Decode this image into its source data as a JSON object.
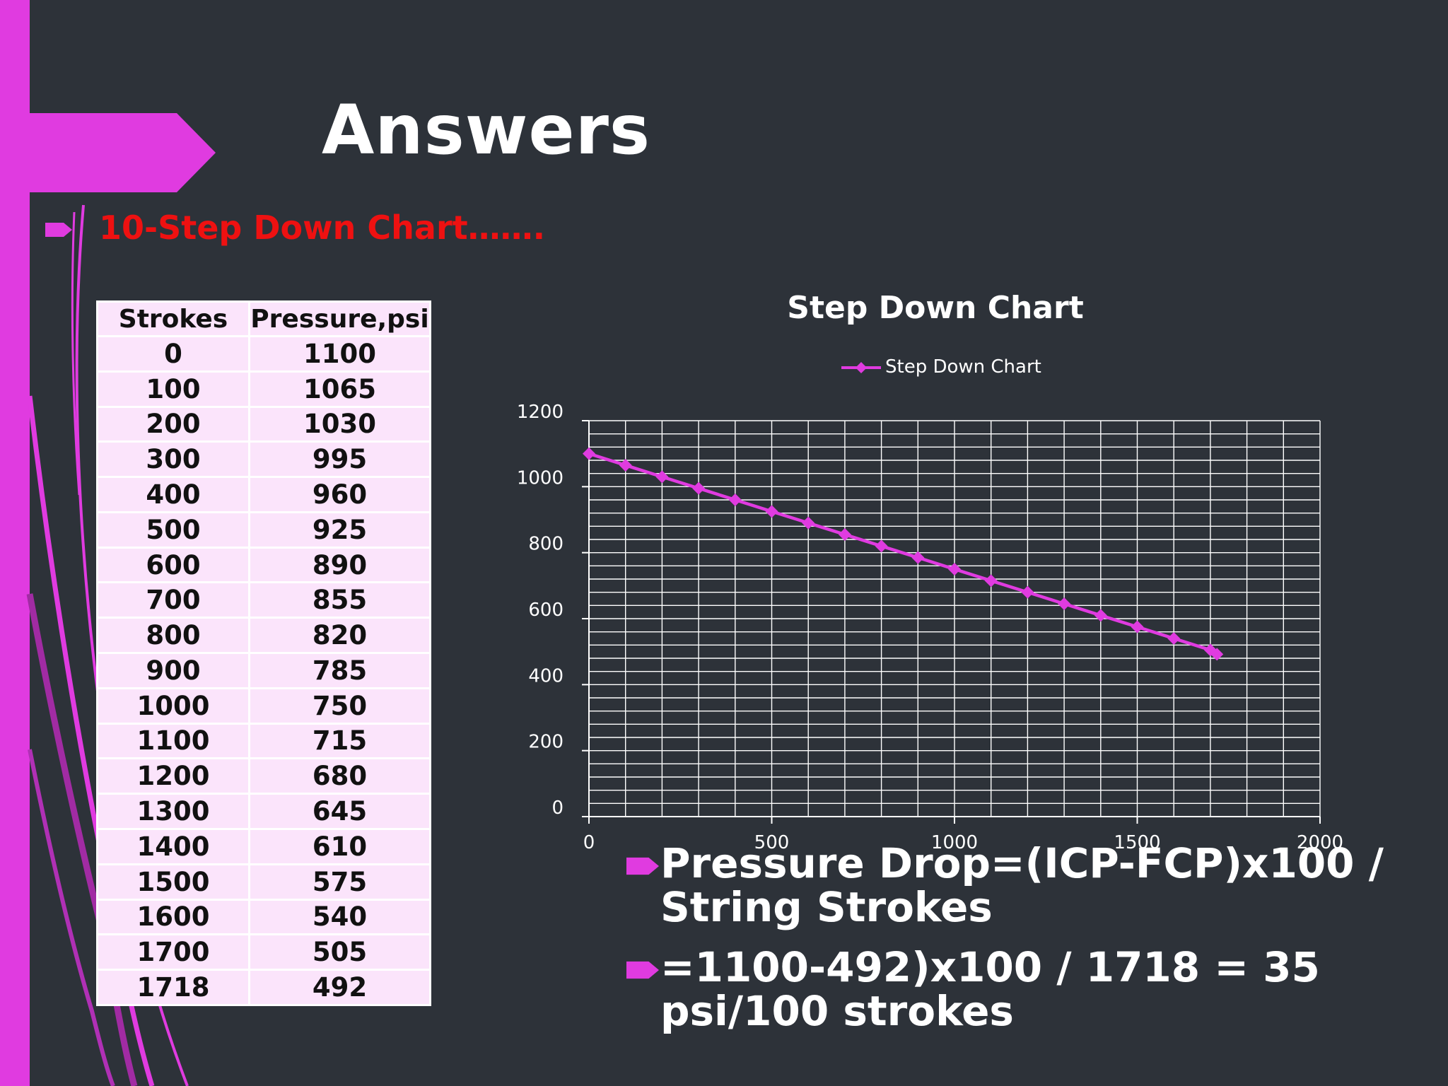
{
  "title": "Answers",
  "subtitle": "10-Step Down Chart…….",
  "colors": {
    "accent": "#e03be0",
    "background": "#2d3239",
    "subtitle": "#ee1111",
    "table_fill": "#fbe4fb",
    "series": "#e03be0"
  },
  "table": {
    "headers": [
      "Strokes",
      "Pressure,psi"
    ],
    "rows": [
      [
        "0",
        "1100"
      ],
      [
        "100",
        "1065"
      ],
      [
        "200",
        "1030"
      ],
      [
        "300",
        "995"
      ],
      [
        "400",
        "960"
      ],
      [
        "500",
        "925"
      ],
      [
        "600",
        "890"
      ],
      [
        "700",
        "855"
      ],
      [
        "800",
        "820"
      ],
      [
        "900",
        "785"
      ],
      [
        "1000",
        "750"
      ],
      [
        "1100",
        "715"
      ],
      [
        "1200",
        "680"
      ],
      [
        "1300",
        "645"
      ],
      [
        "1400",
        "610"
      ],
      [
        "1500",
        "575"
      ],
      [
        "1600",
        "540"
      ],
      [
        "1700",
        "505"
      ],
      [
        "1718",
        "492"
      ]
    ]
  },
  "chart_data": {
    "type": "line",
    "title": "Step Down Chart",
    "legend_position": "top",
    "x_ticks": [
      0,
      500,
      1000,
      1500,
      2000
    ],
    "y_ticks": [
      0,
      200,
      400,
      600,
      800,
      1000,
      1200
    ],
    "xlim": [
      0,
      2000
    ],
    "ylim": [
      0,
      1200
    ],
    "minor_grid_x_step": 100,
    "minor_grid_y_step": 40,
    "grid": true,
    "series": [
      {
        "name": "Step Down Chart",
        "color": "#e03be0",
        "marker": "diamond",
        "x": [
          0,
          100,
          200,
          300,
          400,
          500,
          600,
          700,
          800,
          900,
          1000,
          1100,
          1200,
          1300,
          1400,
          1500,
          1600,
          1700,
          1718
        ],
        "y": [
          1100,
          1065,
          1030,
          995,
          960,
          925,
          890,
          855,
          820,
          785,
          750,
          715,
          680,
          645,
          610,
          575,
          540,
          505,
          492
        ]
      }
    ]
  },
  "formulas": [
    {
      "line1": "Pressure Drop=(ICP-FCP)x100 /",
      "line2": "String Strokes"
    },
    {
      "line1": "=1100-492)x100 / 1718 = 35",
      "line2": "psi/100 strokes"
    }
  ]
}
